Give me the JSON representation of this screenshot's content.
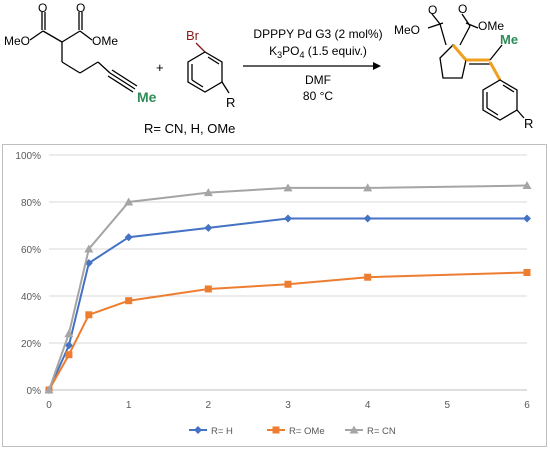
{
  "scheme": {
    "substrate_left_ester": "MeO",
    "substrate_ester_label": "O",
    "substrate_right_ester": "OMe",
    "substrate_me": "Me",
    "plus": "+",
    "aryl_br": "Br",
    "aryl_r": "R",
    "conditions_line1": "DPPPY Pd G3 (2 mol%)",
    "conditions_line2_pre": "K",
    "conditions_line2_sub1": "3",
    "conditions_line2_mid": "PO",
    "conditions_line2_sub2": "4",
    "conditions_line2_post": " (1.5 equiv.)",
    "solvent": "DMF",
    "temperature": "80  °C",
    "r_groups": "R= CN, H, OMe",
    "product_meo": "MeO",
    "product_ome": "OMe",
    "product_me": "Me",
    "product_r": "R",
    "colors": {
      "bromine": "#8b1a1a",
      "methyl": "#2e8b57",
      "new_bond": "#f0a020"
    }
  },
  "chart_data": {
    "type": "line",
    "x": [
      0,
      0.25,
      0.5,
      1,
      2,
      3,
      4,
      6
    ],
    "xticks": [
      "0",
      "1",
      "2",
      "3",
      "4",
      "5",
      "6"
    ],
    "yticks": [
      "0%",
      "20%",
      "40%",
      "60%",
      "80%",
      "100%"
    ],
    "xlim": [
      0,
      6
    ],
    "ylim": [
      0,
      100
    ],
    "grid": "horizontal",
    "legend_position": "bottom",
    "series": [
      {
        "name": "R= H",
        "color": "#4472c4",
        "marker": "diamond",
        "values": [
          0,
          19,
          54,
          65,
          69,
          73,
          73,
          73
        ]
      },
      {
        "name": "R= OMe",
        "color": "#ed7d31",
        "marker": "square",
        "values": [
          0,
          15,
          32,
          38,
          43,
          45,
          48,
          50
        ]
      },
      {
        "name": "R= CN",
        "color": "#a5a5a5",
        "marker": "triangle",
        "values": [
          0,
          24,
          60,
          80,
          84,
          86,
          86,
          87
        ]
      }
    ]
  }
}
